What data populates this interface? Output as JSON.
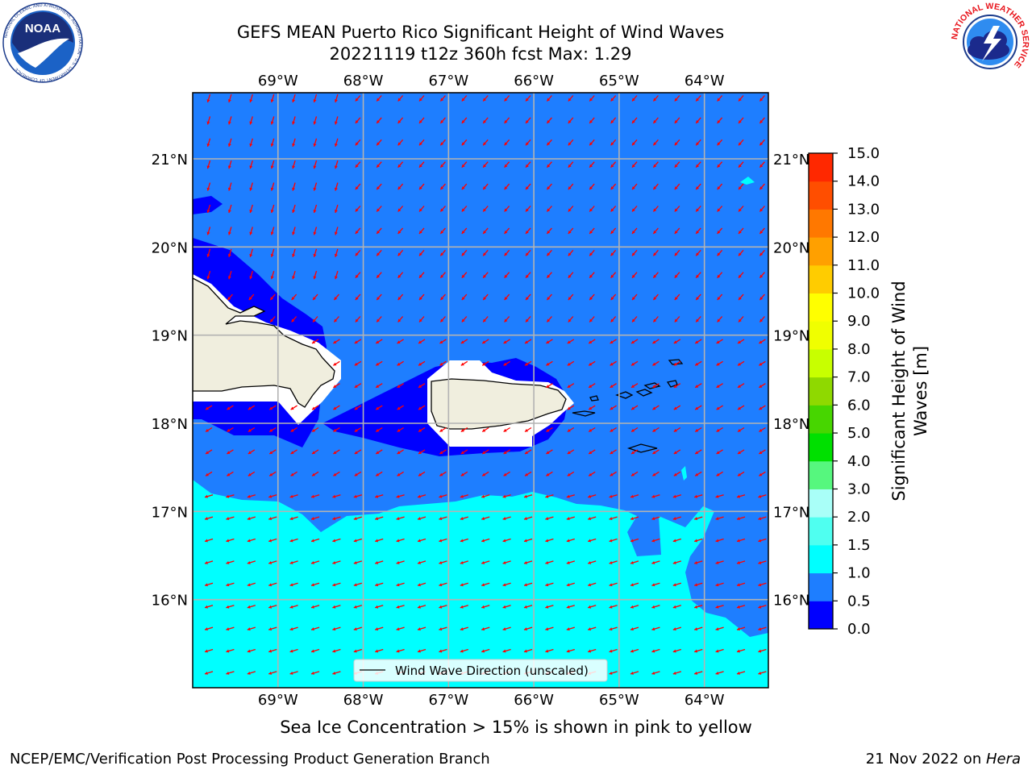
{
  "title": {
    "line1": "GEFS MEAN Puerto Rico Significant Height of Wind Waves",
    "line2": "20221119 t12z 360h fcst   Max: 1.29"
  },
  "logos": {
    "left": "noaa-logo",
    "left_text": "NOAA",
    "left_ring": "NATIONAL OCEANIC AND ATMOSPHERIC ADMINISTRATION · U.S. DEPARTMENT OF COMMERCE",
    "right": "nws-logo",
    "right_ring": "NATIONAL WEATHER SERVICE"
  },
  "map": {
    "lon_labels": [
      "69°W",
      "68°W",
      "67°W",
      "66°W",
      "65°W",
      "64°W"
    ],
    "lon_values": [
      -69,
      -68,
      -67,
      -66,
      -65,
      -64
    ],
    "lat_labels": [
      "16°N",
      "17°N",
      "18°N",
      "19°N",
      "20°N",
      "21°N"
    ],
    "lat_values": [
      16,
      17,
      18,
      19,
      20,
      21
    ],
    "lon_range": [
      -70,
      -63.25
    ],
    "lat_range": [
      15,
      21.75
    ],
    "legend_label": "Wind Wave Direction (unscaled)",
    "arrow_color": "#ff0000"
  },
  "colorbar": {
    "ticks": [
      "0.0",
      "0.5",
      "1.0",
      "1.5",
      "2.0",
      "3.0",
      "4.0",
      "5.0",
      "6.0",
      "7.0",
      "8.0",
      "9.0",
      "10.0",
      "11.0",
      "12.0",
      "13.0",
      "14.0",
      "15.0"
    ],
    "colors": [
      "#0000ff",
      "#1e7eff",
      "#00ffff",
      "#4ffff0",
      "#a9fff8",
      "#56f77e",
      "#00e000",
      "#47d600",
      "#8fd900",
      "#c8ff00",
      "#f0ff00",
      "#ffff00",
      "#ffcc00",
      "#ffa000",
      "#ff7800",
      "#ff4e00",
      "#ff2800",
      "#ff0000"
    ],
    "label_line1": "Significant Height of Wind",
    "label_line2": "Waves [m]"
  },
  "caption": "Sea Ice Concentration > 15% is shown in pink to yellow",
  "footer": {
    "left": "NCEP/EMC/Verification Post Processing Product Generation Branch",
    "right_date": "21 Nov 2022 on ",
    "right_host": "Hera"
  }
}
